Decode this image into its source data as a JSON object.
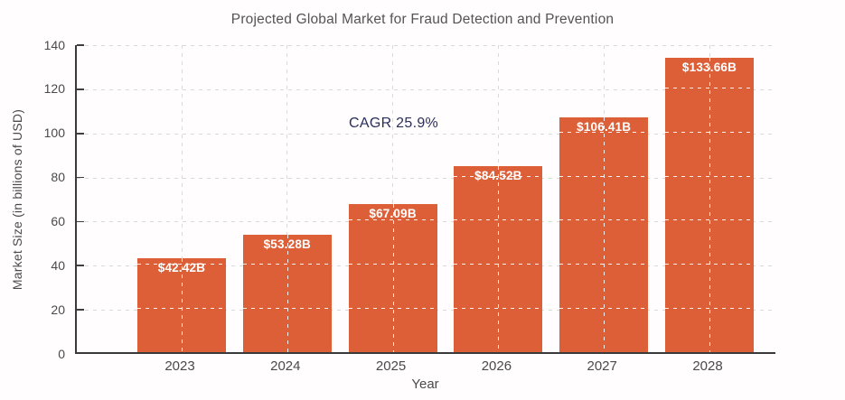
{
  "chart_data": {
    "type": "bar",
    "title": "Projected Global Market for Fraud Detection and Prevention",
    "xlabel": "Year",
    "ylabel": "Market Size (in billions of USD)",
    "categories": [
      "2023",
      "2024",
      "2025",
      "2026",
      "2027",
      "2028"
    ],
    "values": [
      42.42,
      53.28,
      67.09,
      84.52,
      106.41,
      133.66
    ],
    "bar_labels": [
      "$42.42B",
      "$53.28B",
      "$67.09B",
      "$84.52B",
      "$106.41B",
      "$133.66B"
    ],
    "annotation": "CAGR 25.9%",
    "ylim": [
      0,
      140
    ],
    "yticks": [
      0,
      20,
      40,
      60,
      80,
      100,
      120,
      140
    ],
    "grid": "dashed",
    "legend": "none",
    "colors": {
      "bar": "#DD5F38",
      "bar_label": "#FFFFFF",
      "annotation": "#2A2E5A",
      "title": "#545454",
      "tick_label": "#4A4A4A",
      "gridline": "#D9D9D9",
      "spine": "#3A3A3A",
      "background": "#FFFDFD"
    }
  }
}
